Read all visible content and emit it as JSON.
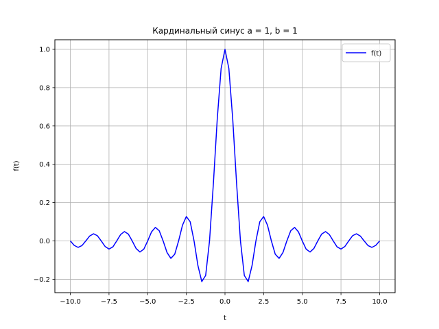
{
  "chart_data": {
    "type": "line",
    "title": "Кардинальный синус a = 1, b = 1",
    "xlabel": "t",
    "ylabel": "f(t)",
    "xlim": [
      -11.0,
      11.0
    ],
    "ylim": [
      -0.27,
      1.05
    ],
    "xticks": [
      -10.0,
      -7.5,
      -5.0,
      -2.5,
      0.0,
      2.5,
      5.0,
      7.5,
      10.0
    ],
    "xtick_labels": [
      "−10.0",
      "−7.5",
      "−5.0",
      "−2.5",
      "0.0",
      "2.5",
      "5.0",
      "7.5",
      "10.0"
    ],
    "yticks": [
      -0.2,
      0.0,
      0.2,
      0.4,
      0.6,
      0.8,
      1.0
    ],
    "ytick_labels": [
      "−0.2",
      "0.0",
      "0.2",
      "0.4",
      "0.6",
      "0.8",
      "1.0"
    ],
    "grid": true,
    "legend_position": "top-right",
    "series": [
      {
        "name": "f(t)",
        "color": "#0000ff",
        "x": [
          -10.0,
          -9.75,
          -9.5,
          -9.25,
          -9.0,
          -8.75,
          -8.5,
          -8.25,
          -8.0,
          -7.75,
          -7.5,
          -7.25,
          -7.0,
          -6.75,
          -6.5,
          -6.25,
          -6.0,
          -5.75,
          -5.5,
          -5.25,
          -5.0,
          -4.75,
          -4.5,
          -4.25,
          -4.0,
          -3.75,
          -3.5,
          -3.25,
          -3.0,
          -2.75,
          -2.5,
          -2.25,
          -2.0,
          -1.75,
          -1.5,
          -1.25,
          -1.0,
          -0.75,
          -0.5,
          -0.25,
          0.0,
          0.25,
          0.5,
          0.75,
          1.0,
          1.25,
          1.5,
          1.75,
          2.0,
          2.25,
          2.5,
          2.75,
          3.0,
          3.25,
          3.5,
          3.75,
          4.0,
          4.25,
          4.5,
          4.75,
          5.0,
          5.25,
          5.5,
          5.75,
          6.0,
          6.25,
          6.5,
          6.75,
          7.0,
          7.25,
          7.5,
          7.75,
          8.0,
          8.25,
          8.5,
          8.75,
          9.0,
          9.25,
          9.5,
          9.75,
          10.0
        ],
        "y": [
          0.0,
          -0.0232,
          -0.0335,
          -0.0243,
          0.0,
          0.0257,
          0.0374,
          0.0273,
          0.0,
          -0.029,
          -0.0424,
          -0.031,
          0.0,
          0.0333,
          0.049,
          0.036,
          0.0,
          -0.0391,
          -0.0579,
          -0.0429,
          0.0,
          0.0474,
          0.0707,
          0.053,
          0.0,
          -0.06,
          -0.0909,
          -0.0693,
          0.0,
          0.0818,
          0.1273,
          0.1,
          0.0,
          -0.1286,
          -0.2122,
          -0.1801,
          0.0,
          0.3001,
          0.6366,
          0.9003,
          1.0,
          0.9003,
          0.6366,
          0.3001,
          0.0,
          -0.1801,
          -0.2122,
          -0.1286,
          0.0,
          0.1,
          0.1273,
          0.0818,
          0.0,
          -0.0693,
          -0.0909,
          -0.06,
          0.0,
          0.053,
          0.0707,
          0.0474,
          0.0,
          -0.0429,
          -0.0579,
          -0.0391,
          0.0,
          0.036,
          0.049,
          0.0333,
          0.0,
          -0.031,
          -0.0424,
          -0.029,
          0.0,
          0.0273,
          0.0374,
          0.0257,
          0.0,
          -0.0243,
          -0.0335,
          -0.0232,
          0.0
        ]
      }
    ]
  }
}
